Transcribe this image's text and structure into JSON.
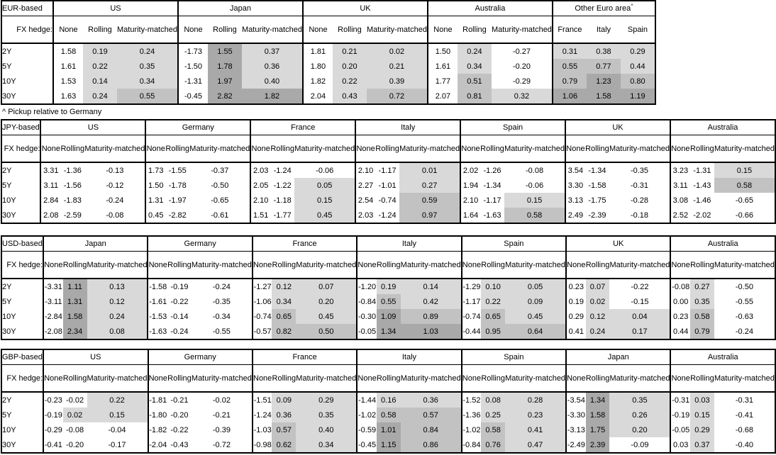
{
  "page": {
    "footnote": "^ Pickup relative to Germany",
    "fx_hedge_label": "FX hedge:",
    "tenors": [
      "2Y",
      "5Y",
      "10Y",
      "30Y"
    ],
    "hedge_cols": [
      "None",
      "Rolling",
      "Maturity-matched"
    ]
  },
  "colors": {
    "background": "#ffffff",
    "border": "#000000",
    "text": "#000000",
    "shade_light": "#d9d9d9",
    "shade_medium": "#c2c2c2",
    "shade_dark": "#a9a9a9"
  },
  "shading": {
    "rule": "cells in Rolling and Maturity-matched columns (and all Other Euro area columns) are shaded by value; None columns are never shaded",
    "light_min": 0,
    "medium_min": 0.5,
    "dark_min": 1.0
  },
  "tables": [
    {
      "base": "EUR-based",
      "groups": [
        {
          "name": "US",
          "rows": [
            [
              "1.58",
              "0.19",
              "0.24"
            ],
            [
              "1.61",
              "0.22",
              "0.35"
            ],
            [
              "1.53",
              "0.14",
              "0.34"
            ],
            [
              "1.63",
              "0.24",
              "0.55"
            ]
          ]
        },
        {
          "name": "Japan",
          "rows": [
            [
              "-1.73",
              "1.55",
              "0.37"
            ],
            [
              "-1.50",
              "1.78",
              "0.36"
            ],
            [
              "-1.31",
              "1.97",
              "0.40"
            ],
            [
              "-0.45",
              "2.82",
              "1.82"
            ]
          ]
        },
        {
          "name": "UK",
          "rows": [
            [
              "1.81",
              "0.21",
              "0.02"
            ],
            [
              "1.80",
              "0.20",
              "0.21"
            ],
            [
              "1.82",
              "0.22",
              "0.39"
            ],
            [
              "2.04",
              "0.43",
              "0.72"
            ]
          ]
        },
        {
          "name": "Australia",
          "rows": [
            [
              "1.50",
              "0.24",
              "-0.27"
            ],
            [
              "1.61",
              "0.34",
              "-0.20"
            ],
            [
              "1.77",
              "0.51",
              "-0.29"
            ],
            [
              "2.07",
              "0.81",
              "0.32"
            ]
          ]
        },
        {
          "name": "Other Euro area",
          "superscript": "^",
          "cols": [
            "France",
            "Italy",
            "Spain"
          ],
          "shade_all_cols": true,
          "equal_cols": true,
          "rows": [
            [
              "0.31",
              "0.38",
              "0.29"
            ],
            [
              "0.55",
              "0.77",
              "0.44"
            ],
            [
              "0.79",
              "1.23",
              "0.80"
            ],
            [
              "1.06",
              "1.58",
              "1.19"
            ]
          ]
        }
      ]
    },
    {
      "base": "JPY-based",
      "groups": [
        {
          "name": "US",
          "rows": [
            [
              "3.31",
              "-1.36",
              "-0.13"
            ],
            [
              "3.11",
              "-1.56",
              "-0.12"
            ],
            [
              "2.84",
              "-1.83",
              "-0.24"
            ],
            [
              "2.08",
              "-2.59",
              "-0.08"
            ]
          ]
        },
        {
          "name": "Germany",
          "rows": [
            [
              "1.73",
              "-1.55",
              "-0.37"
            ],
            [
              "1.50",
              "-1.78",
              "-0.50"
            ],
            [
              "1.31",
              "-1.97",
              "-0.65"
            ],
            [
              "0.45",
              "-2.82",
              "-0.61"
            ]
          ]
        },
        {
          "name": "France",
          "rows": [
            [
              "2.03",
              "-1.24",
              "-0.06"
            ],
            [
              "2.05",
              "-1.22",
              "0.05"
            ],
            [
              "2.10",
              "-1.18",
              "0.15"
            ],
            [
              "1.51",
              "-1.77",
              "0.45"
            ]
          ]
        },
        {
          "name": "Italy",
          "rows": [
            [
              "2.10",
              "-1.17",
              "0.01"
            ],
            [
              "2.27",
              "-1.01",
              "0.27"
            ],
            [
              "2.54",
              "-0.74",
              "0.59"
            ],
            [
              "2.03",
              "-1.24",
              "0.97"
            ]
          ]
        },
        {
          "name": "Spain",
          "rows": [
            [
              "2.02",
              "-1.26",
              "-0.08"
            ],
            [
              "1.94",
              "-1.34",
              "-0.06"
            ],
            [
              "2.10",
              "-1.17",
              "0.15"
            ],
            [
              "1.64",
              "-1.63",
              "0.58"
            ]
          ]
        },
        {
          "name": "UK",
          "rows": [
            [
              "3.54",
              "-1.34",
              "-0.35"
            ],
            [
              "3.30",
              "-1.58",
              "-0.31"
            ],
            [
              "3.13",
              "-1.75",
              "-0.28"
            ],
            [
              "2.49",
              "-2.39",
              "-0.18"
            ]
          ]
        },
        {
          "name": "Australia",
          "rows": [
            [
              "3.23",
              "-1.31",
              "0.15"
            ],
            [
              "3.11",
              "-1.43",
              "0.58"
            ],
            [
              "3.08",
              "-1.46",
              "-0.65"
            ],
            [
              "2.52",
              "-2.02",
              "-0.66"
            ]
          ]
        }
      ]
    },
    {
      "base": "USD-based",
      "groups": [
        {
          "name": "Japan",
          "rows": [
            [
              "-3.31",
              "1.11",
              "0.13"
            ],
            [
              "-3.11",
              "1.31",
              "0.12"
            ],
            [
              "-2.84",
              "1.58",
              "0.24"
            ],
            [
              "-2.08",
              "2.34",
              "0.08"
            ]
          ]
        },
        {
          "name": "Germany",
          "rows": [
            [
              "-1.58",
              "-0.19",
              "-0.24"
            ],
            [
              "-1.61",
              "-0.22",
              "-0.35"
            ],
            [
              "-1.53",
              "-0.14",
              "-0.34"
            ],
            [
              "-1.63",
              "-0.24",
              "-0.55"
            ]
          ]
        },
        {
          "name": "France",
          "rows": [
            [
              "-1.27",
              "0.12",
              "0.07"
            ],
            [
              "-1.06",
              "0.34",
              "0.20"
            ],
            [
              "-0.74",
              "0.65",
              "0.45"
            ],
            [
              "-0.57",
              "0.82",
              "0.50"
            ]
          ]
        },
        {
          "name": "Italy",
          "rows": [
            [
              "-1.20",
              "0.19",
              "0.14"
            ],
            [
              "-0.84",
              "0.55",
              "0.42"
            ],
            [
              "-0.30",
              "1.09",
              "0.89"
            ],
            [
              "-0.05",
              "1.34",
              "1.03"
            ]
          ]
        },
        {
          "name": "Spain",
          "rows": [
            [
              "-1.29",
              "0.10",
              "0.05"
            ],
            [
              "-1.17",
              "0.22",
              "0.09"
            ],
            [
              "-0.74",
              "0.65",
              "0.45"
            ],
            [
              "-0.44",
              "0.95",
              "0.64"
            ]
          ]
        },
        {
          "name": "UK",
          "rows": [
            [
              "0.23",
              "0.07",
              "-0.22"
            ],
            [
              "0.19",
              "0.02",
              "-0.15"
            ],
            [
              "0.29",
              "0.12",
              "0.04"
            ],
            [
              "0.41",
              "0.24",
              "0.17"
            ]
          ]
        },
        {
          "name": "Australia",
          "rows": [
            [
              "-0.08",
              "0.27",
              "-0.50"
            ],
            [
              "0.00",
              "0.35",
              "-0.55"
            ],
            [
              "0.23",
              "0.58",
              "-0.63"
            ],
            [
              "0.44",
              "0.79",
              "-0.24"
            ]
          ]
        }
      ]
    },
    {
      "base": "GBP-based",
      "groups": [
        {
          "name": "US",
          "rows": [
            [
              "-0.23",
              "-0.02",
              "0.22"
            ],
            [
              "-0.19",
              "0.02",
              "0.15"
            ],
            [
              "-0.29",
              "-0.08",
              "-0.04"
            ],
            [
              "-0.41",
              "-0.20",
              "-0.17"
            ]
          ]
        },
        {
          "name": "Germany",
          "rows": [
            [
              "-1.81",
              "-0.21",
              "-0.02"
            ],
            [
              "-1.80",
              "-0.20",
              "-0.21"
            ],
            [
              "-1.82",
              "-0.22",
              "-0.39"
            ],
            [
              "-2.04",
              "-0.43",
              "-0.72"
            ]
          ]
        },
        {
          "name": "France",
          "rows": [
            [
              "-1.51",
              "0.09",
              "0.29"
            ],
            [
              "-1.24",
              "0.36",
              "0.35"
            ],
            [
              "-1.03",
              "0.57",
              "0.40"
            ],
            [
              "-0.98",
              "0.62",
              "0.34"
            ]
          ]
        },
        {
          "name": "Italy",
          "rows": [
            [
              "-1.44",
              "0.16",
              "0.36"
            ],
            [
              "-1.02",
              "0.58",
              "0.57"
            ],
            [
              "-0.59",
              "1.01",
              "0.84"
            ],
            [
              "-0.45",
              "1.15",
              "0.86"
            ]
          ]
        },
        {
          "name": "Spain",
          "rows": [
            [
              "-1.52",
              "0.08",
              "0.28"
            ],
            [
              "-1.36",
              "0.25",
              "0.23"
            ],
            [
              "-1.02",
              "0.58",
              "0.41"
            ],
            [
              "-0.84",
              "0.76",
              "0.47"
            ]
          ]
        },
        {
          "name": "Japan",
          "rows": [
            [
              "-3.54",
              "1.34",
              "0.35"
            ],
            [
              "-3.30",
              "1.58",
              "0.26"
            ],
            [
              "-3.13",
              "1.75",
              "0.20"
            ],
            [
              "-2.49",
              "2.39",
              "-0.09"
            ]
          ]
        },
        {
          "name": "Australia",
          "rows": [
            [
              "-0.31",
              "0.03",
              "-0.31"
            ],
            [
              "-0.19",
              "0.15",
              "-0.41"
            ],
            [
              "-0.05",
              "0.29",
              "-0.68"
            ],
            [
              "0.03",
              "0.37",
              "-0.40"
            ]
          ]
        }
      ]
    }
  ]
}
